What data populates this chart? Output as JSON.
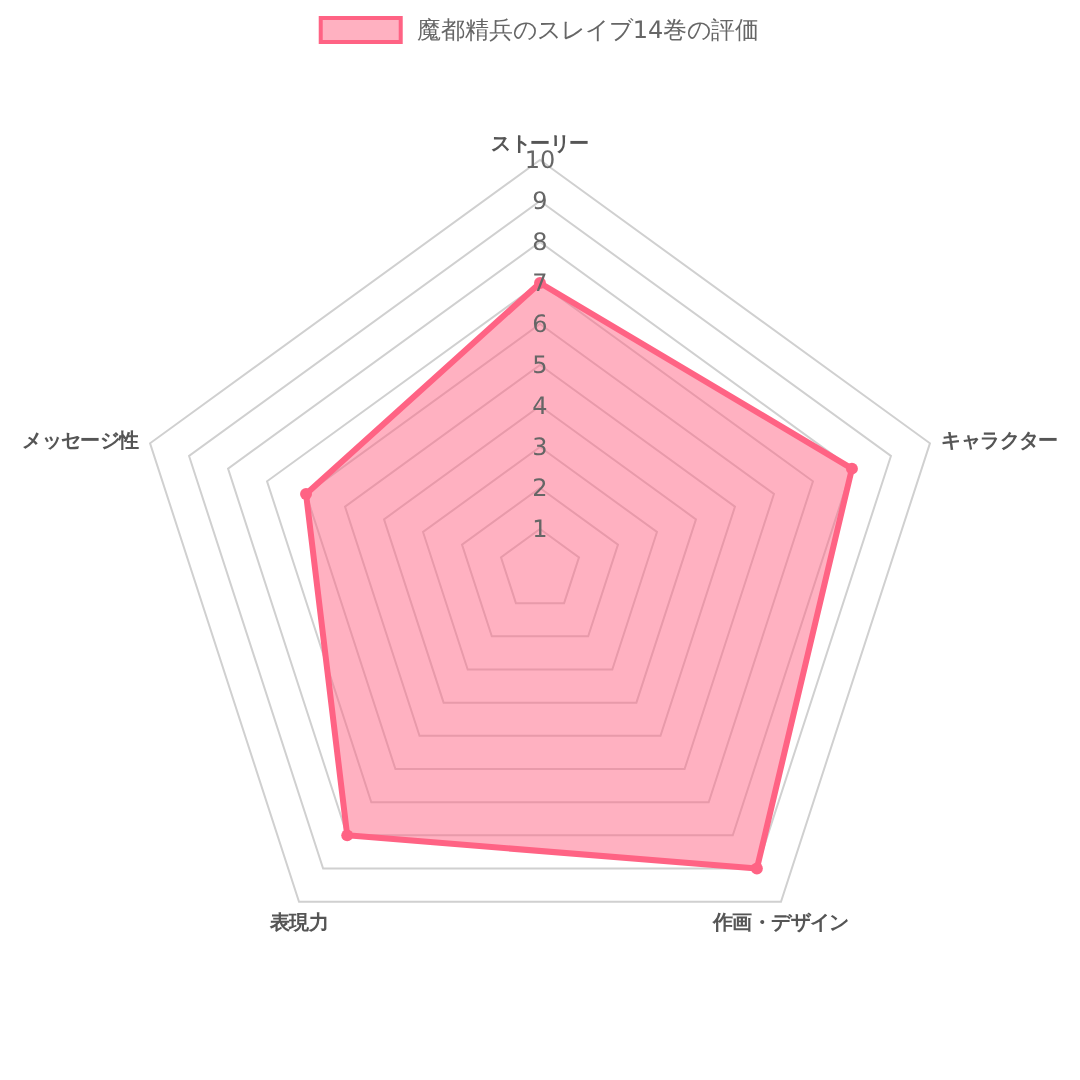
{
  "chart_data": {
    "type": "radar",
    "categories": [
      "ストーリー",
      "キャラクター",
      "作画・デザイン",
      "表現力",
      "メッセージ性"
    ],
    "series": [
      {
        "name": "魔都精兵のスレイブ14巻の評価",
        "color": "#ff6384",
        "values": [
          7,
          8,
          9,
          8,
          6
        ]
      }
    ],
    "ylim": [
      0,
      10
    ],
    "yticks": [
      1,
      2,
      3,
      4,
      5,
      6,
      7,
      8,
      9,
      10
    ],
    "grid": true,
    "legend": "top",
    "marker": "circle"
  }
}
